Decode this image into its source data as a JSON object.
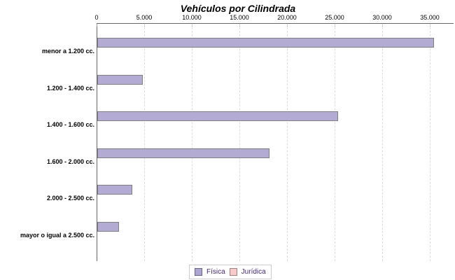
{
  "chart_data": {
    "type": "bar",
    "orientation": "horizontal",
    "title": "Vehículos por Cilindrada",
    "categories": [
      "menor a 1.200 cc.",
      "1.200 - 1.400 cc.",
      "1.400 - 1.600 cc.",
      "1.600 - 2.000 cc.",
      "2.000 - 2.500 cc.",
      "mayor o igual a 2.500 cc."
    ],
    "series": [
      {
        "name": "Física",
        "color": "#b4abd5",
        "border_color": "#7f7f7f",
        "values": [
          35400,
          4800,
          25300,
          18100,
          3700,
          2300
        ]
      },
      {
        "name": "Jurídica",
        "color": "#f9caca",
        "border_color": "#9b8383",
        "values": [
          0,
          0,
          0,
          0,
          0,
          0
        ]
      }
    ],
    "x_tick_labels": [
      "0",
      "5.000",
      "10.000",
      "15.000",
      "20.000",
      "25.000",
      "30.000",
      "35.000"
    ],
    "x_tick_values": [
      0,
      5000,
      10000,
      15000,
      20000,
      25000,
      30000,
      35000
    ],
    "xlim": [
      0,
      37500
    ],
    "grid": "vertical-dashed",
    "legend_position": "bottom-center"
  },
  "colors": {
    "axis": "#666666",
    "gridline": "#dcdcdc",
    "tick": "#999999",
    "legend_text": "#44287d",
    "background": "#ffffff"
  }
}
